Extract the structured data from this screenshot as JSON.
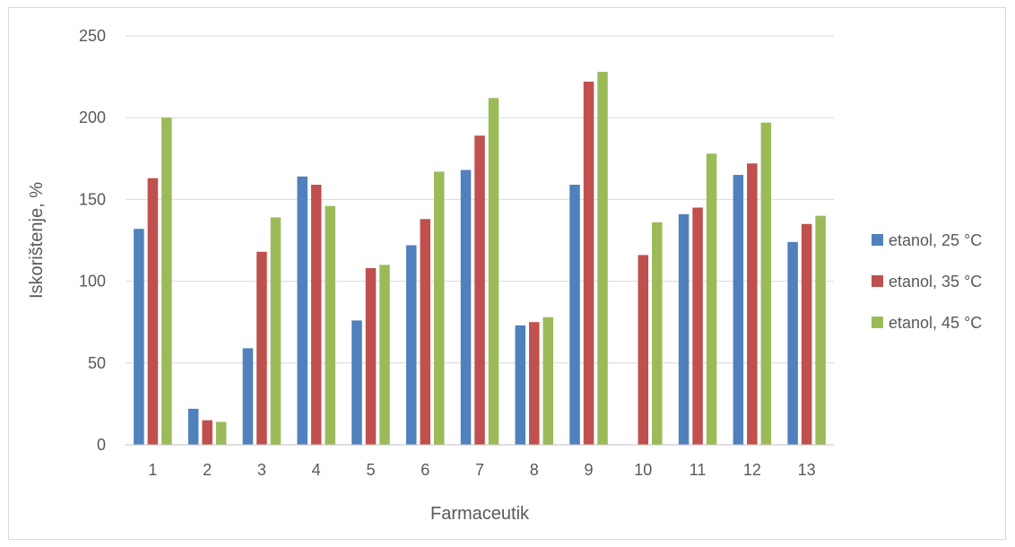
{
  "chart_data": {
    "type": "bar",
    "title": "",
    "xlabel": "Farmaceutik",
    "ylabel": "Iskorištenje, %",
    "ylim": [
      0,
      250
    ],
    "yticks": [
      0,
      50,
      100,
      150,
      200,
      250
    ],
    "grid": true,
    "legend_position": "right",
    "categories": [
      "1",
      "2",
      "3",
      "4",
      "5",
      "6",
      "7",
      "8",
      "9",
      "10",
      "11",
      "12",
      "13"
    ],
    "series": [
      {
        "name": "etanol, 25 °C",
        "color": "#4f81bd",
        "values": [
          132,
          22,
          59,
          164,
          76,
          122,
          168,
          73,
          159,
          null,
          141,
          165,
          124
        ]
      },
      {
        "name": "etanol, 35 °C",
        "color": "#c0504d",
        "values": [
          163,
          15,
          118,
          159,
          108,
          138,
          189,
          75,
          222,
          116,
          145,
          172,
          135
        ]
      },
      {
        "name": "etanol, 45 °C",
        "color": "#9bbb59",
        "values": [
          200,
          14,
          139,
          146,
          110,
          167,
          212,
          78,
          228,
          136,
          178,
          197,
          140
        ]
      }
    ]
  }
}
